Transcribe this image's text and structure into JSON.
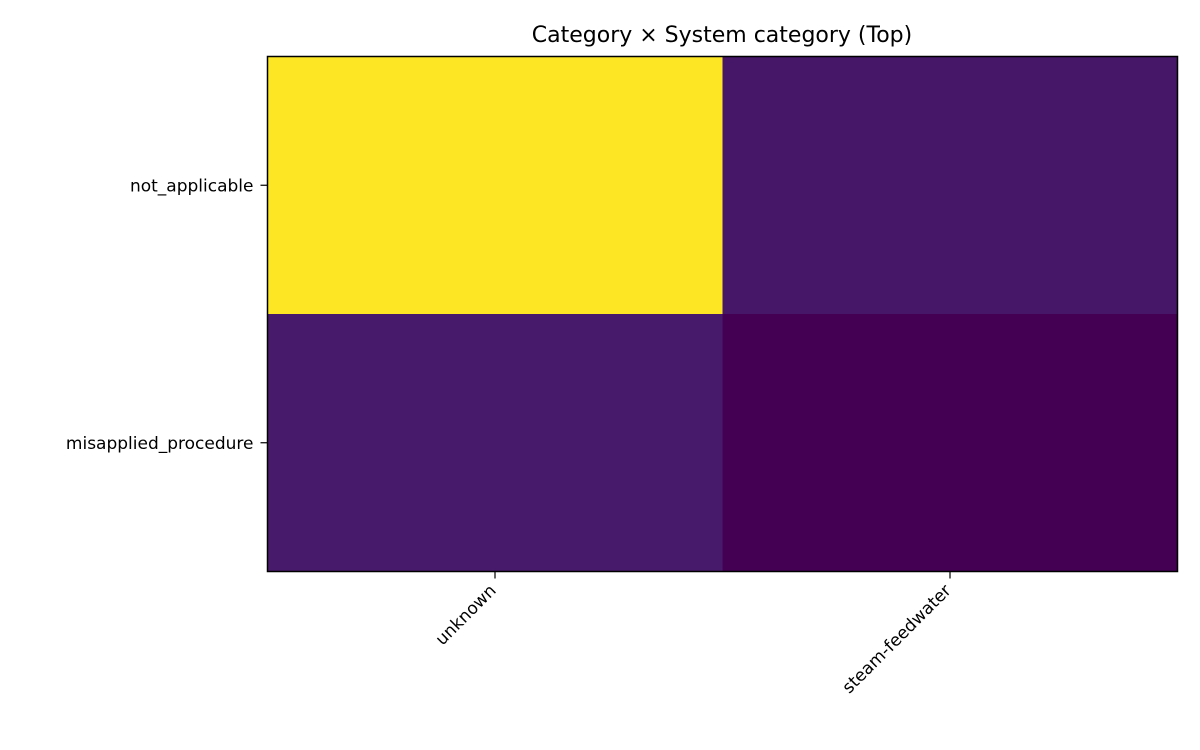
{
  "chart_data": {
    "type": "heatmap",
    "title": "Category × System category (Top)",
    "xlabel": "",
    "ylabel": "",
    "x_categories": [
      "unknown",
      "steam-feedwater"
    ],
    "y_categories": [
      "not_applicable",
      "misapplied_procedure"
    ],
    "values": [
      [
        1.0,
        0.06
      ],
      [
        0.07,
        0.0
      ]
    ],
    "colormap": "viridis",
    "colorbar": false,
    "grid": false
  }
}
